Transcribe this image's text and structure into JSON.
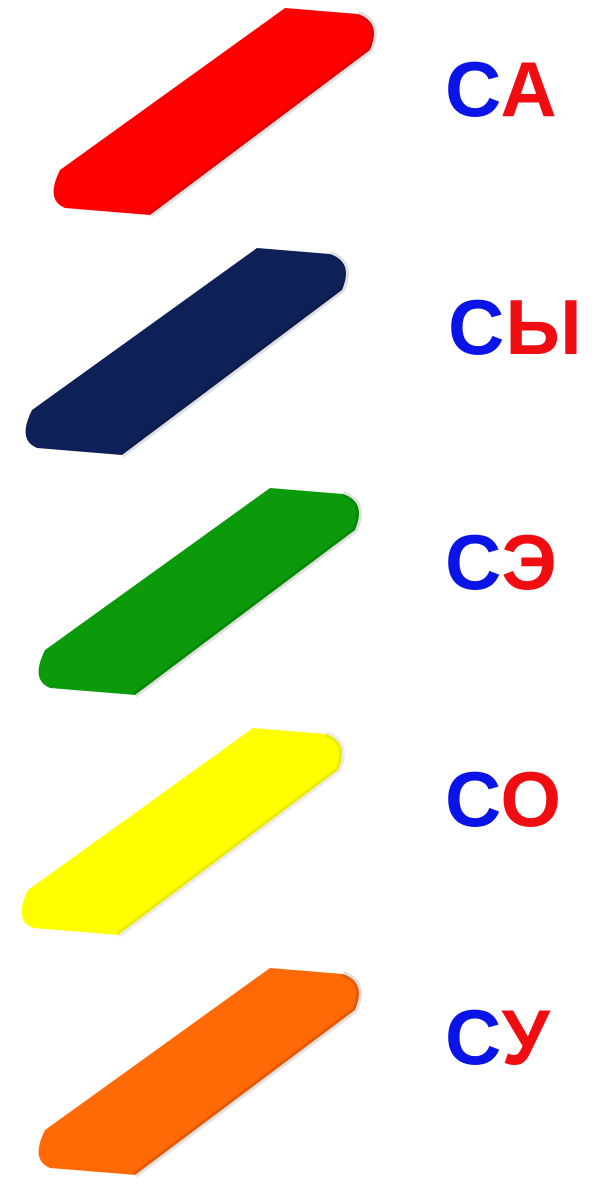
{
  "colors": {
    "consonant": "#0a14e6",
    "vowel": "#f00d12"
  },
  "rows": [
    {
      "bar_color": "#ff0000",
      "consonant": "С",
      "vowel": "А"
    },
    {
      "bar_color": "#0d2158",
      "consonant": "С",
      "vowel": "Ы"
    },
    {
      "bar_color": "#0a9a0a",
      "consonant": "С",
      "vowel": "Э"
    },
    {
      "bar_color": "#ffff00",
      "consonant": "С",
      "vowel": "О"
    },
    {
      "bar_color": "#ff6a06",
      "consonant": "С",
      "vowel": "У"
    }
  ]
}
